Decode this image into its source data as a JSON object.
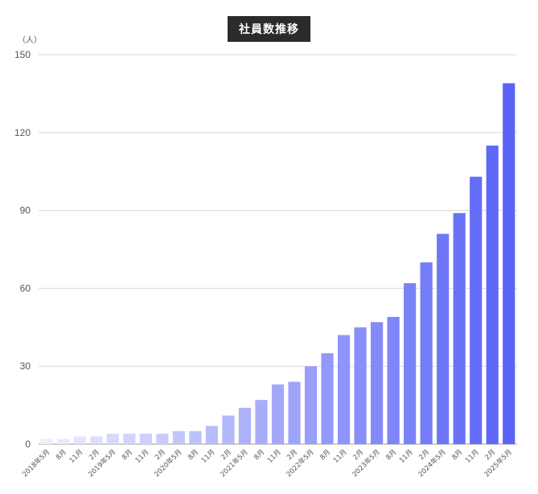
{
  "chart_data": {
    "type": "bar",
    "title": "社員数推移",
    "ylabel": "（人）",
    "xlabel": "",
    "ylim": [
      0,
      150
    ],
    "yticks": [
      0,
      30,
      60,
      90,
      120,
      150
    ],
    "grid": true,
    "categories": [
      "2018年5月",
      "8月",
      "11月",
      "2月",
      "2019年5月",
      "8月",
      "11月",
      "2月",
      "2020年5月",
      "8月",
      "11月",
      "2月",
      "2021年5月",
      "8月",
      "11月",
      "2月",
      "2022年5月",
      "8月",
      "11月",
      "2月",
      "2023年5月",
      "8月",
      "11月",
      "2月",
      "2024年5月",
      "8月",
      "11月",
      "2月",
      "2025年5月"
    ],
    "values": [
      2,
      2,
      3,
      3,
      4,
      4,
      4,
      4,
      5,
      5,
      7,
      11,
      14,
      17,
      23,
      24,
      30,
      35,
      42,
      45,
      47,
      49,
      62,
      70,
      81,
      89,
      103,
      115,
      139
    ],
    "colors": {
      "bar_start": "#ecedfd",
      "bar_end": "#5a63f7",
      "grid": "#d9d9d9",
      "axis": "#999999"
    }
  }
}
